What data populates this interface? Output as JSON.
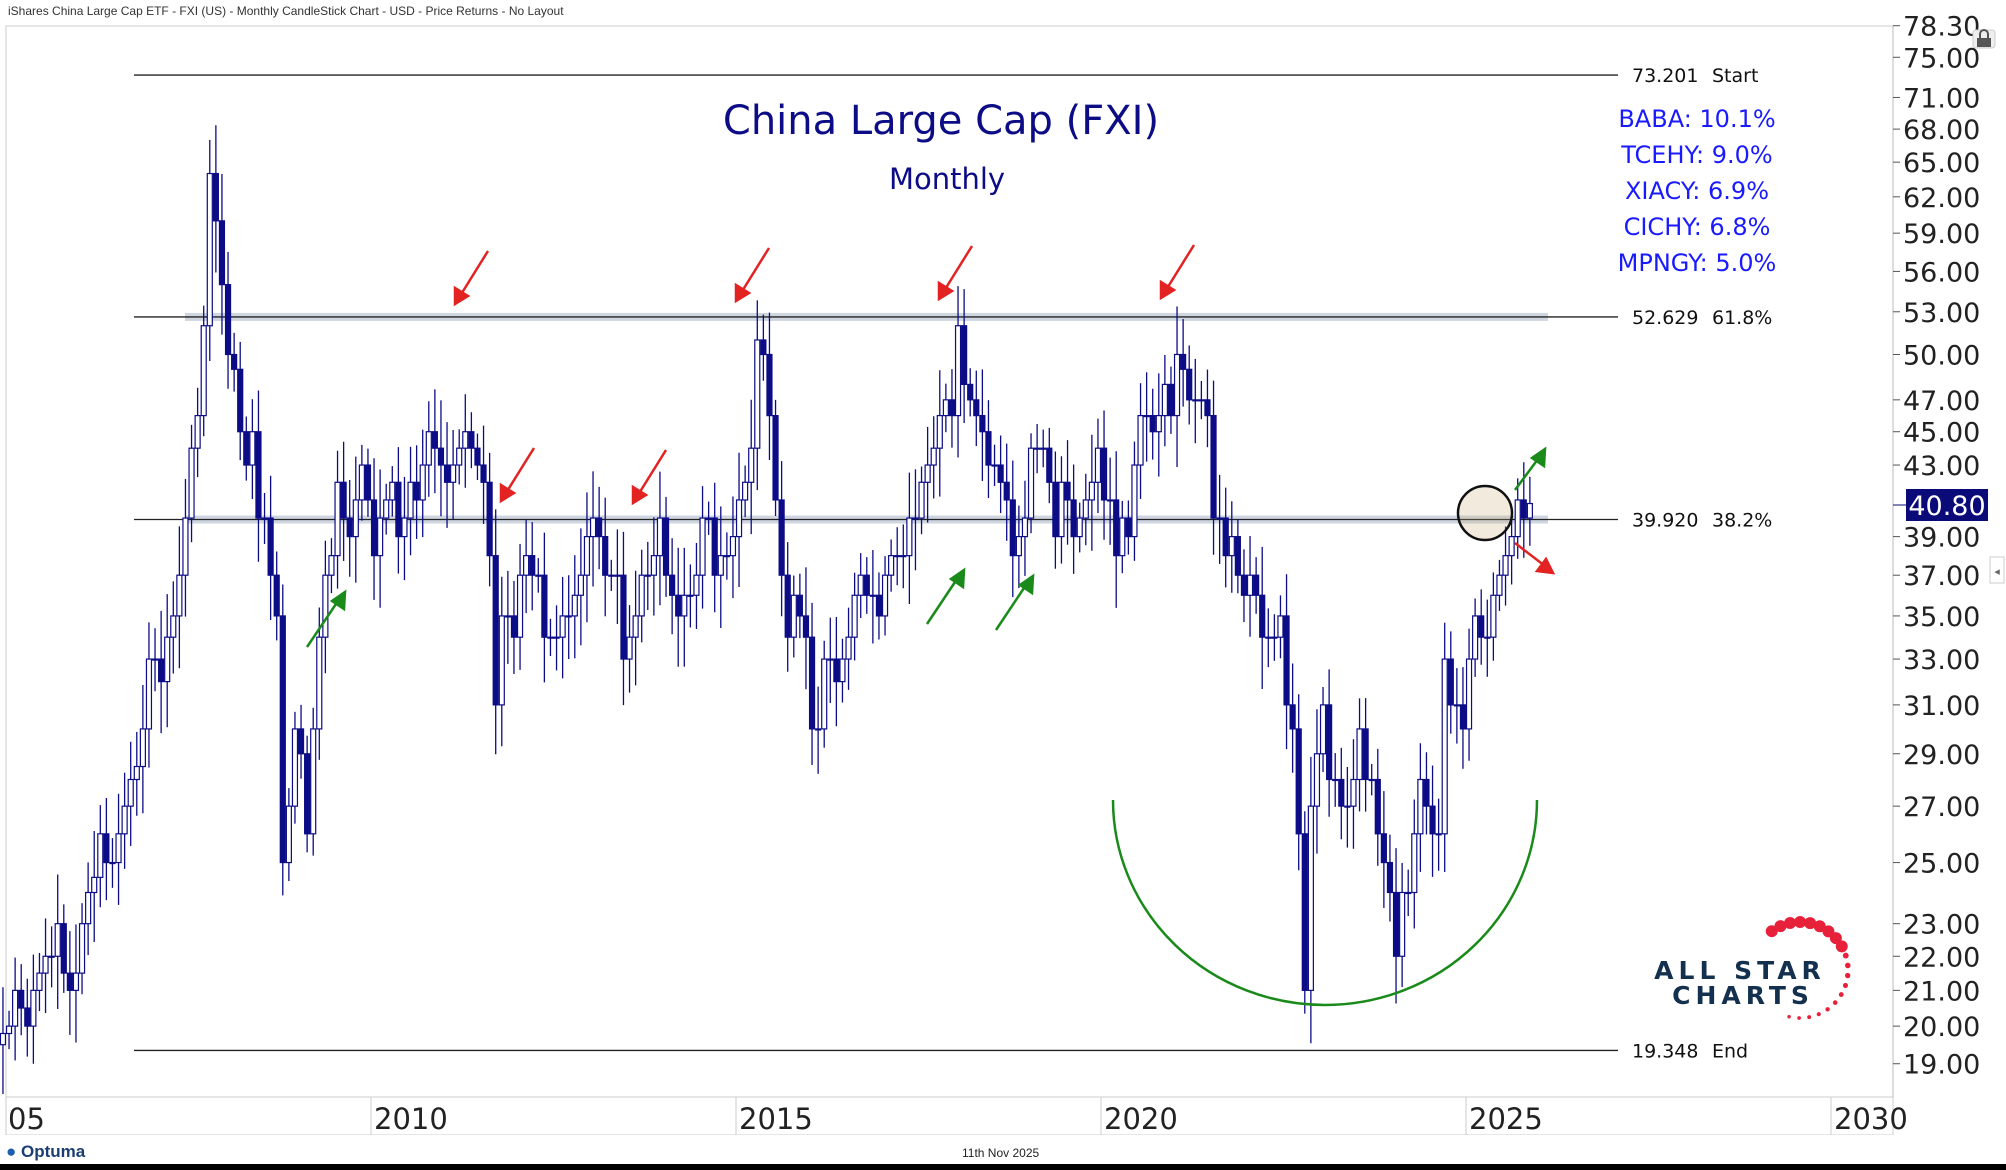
{
  "header": {
    "title": "iShares China Large Cap ETF - FXI (US) - Monthly CandleStick Chart - USD - Price Returns - No Layout"
  },
  "footer": {
    "brand": "Optuma",
    "date": "11th Nov 2025"
  },
  "watermark": {
    "text_line1": "ALL STAR",
    "text_line2": "CHARTS"
  },
  "colors": {
    "candle": "#0c0c86",
    "accent_text": "#1a1aff",
    "title": "#0c0c86",
    "up_arrow": "#1a8a1a",
    "down_arrow": "#e32222",
    "arc": "#1a8a1a",
    "price_badge": "#0a0a78"
  },
  "chart_data": {
    "type": "candlestick",
    "title": "China Large Cap (FXI)",
    "subtitle": "Monthly",
    "y_scale": "log",
    "ylim": [
      18,
      78.3
    ],
    "y_ticks": [
      "78.30",
      "75.00",
      "71.00",
      "68.00",
      "65.00",
      "62.00",
      "59.00",
      "56.00",
      "53.00",
      "50.00",
      "47.00",
      "45.00",
      "43.00",
      "39.00",
      "37.00",
      "35.00",
      "33.00",
      "31.00",
      "29.00",
      "27.00",
      "25.00",
      "23.00",
      "22.00",
      "21.00",
      "20.00",
      "19.00"
    ],
    "x_ticks": [
      "05",
      "2010",
      "2015",
      "2020",
      "2025",
      "2030"
    ],
    "last_price": "40.80",
    "start": "2004-11",
    "monthly_close": [
      19.5,
      19.8,
      20,
      21,
      20.5,
      20,
      21,
      21.5,
      22,
      22,
      23,
      21.5,
      21,
      21.5,
      23,
      24,
      24.5,
      26,
      25,
      25,
      26,
      27,
      28,
      28.5,
      30,
      33,
      33,
      32,
      34,
      35,
      37,
      40,
      44,
      46,
      52,
      64,
      60,
      55,
      50,
      49,
      45,
      43,
      45,
      40,
      40,
      37,
      35,
      25,
      27,
      30,
      29,
      26,
      30,
      34,
      37,
      38,
      42,
      40,
      39,
      41,
      43,
      41,
      38,
      40,
      41,
      42,
      39,
      40,
      42,
      41,
      43,
      45,
      44,
      43,
      42,
      43,
      44,
      45,
      44,
      43,
      42,
      38,
      31,
      35,
      35,
      34,
      37,
      38,
      37,
      37,
      34,
      34,
      34,
      35,
      35,
      36,
      37,
      39,
      40,
      39,
      37,
      37,
      37,
      33,
      34,
      35,
      37,
      37,
      38,
      40,
      37,
      36,
      35,
      36,
      36,
      37,
      40,
      40,
      37,
      38,
      38,
      39,
      41,
      42,
      44,
      51,
      50,
      46,
      41,
      37,
      34,
      36,
      35,
      34,
      30,
      30,
      33,
      33,
      32,
      33,
      34,
      36,
      37,
      36,
      36,
      35,
      37,
      38,
      38,
      38,
      40,
      40,
      42,
      43,
      44,
      46,
      47,
      46,
      52,
      48,
      47,
      46,
      45,
      43,
      43,
      42,
      41,
      38,
      39,
      40,
      44,
      44,
      44,
      42,
      39,
      42,
      41,
      39,
      40,
      41,
      42,
      44,
      41,
      41,
      38,
      40,
      39,
      43,
      46,
      46,
      45,
      46,
      48,
      46,
      50,
      49,
      47,
      47,
      47,
      46,
      40,
      40,
      38,
      39,
      37,
      36,
      37,
      36,
      34,
      34,
      34,
      35,
      31,
      30,
      26,
      21,
      27,
      29,
      31,
      28,
      28,
      27,
      27,
      28,
      30,
      28,
      28,
      26,
      25,
      24,
      22,
      24,
      24,
      26,
      28,
      27,
      26,
      26,
      33,
      31,
      31,
      30,
      33,
      35,
      34,
      34,
      36,
      37,
      38,
      39,
      41,
      40,
      40.8
    ],
    "levels": [
      {
        "value": "73.201",
        "label": "Start",
        "price": 73.201
      },
      {
        "value": "52.629",
        "label": "61.8%",
        "price": 52.629
      },
      {
        "value": "39.920",
        "label": "38.2%",
        "price": 39.92
      },
      {
        "value": "19.348",
        "label": "End",
        "price": 19.348
      }
    ],
    "holdings": [
      "BABA: 10.1%",
      "TCEHY: 9.0%",
      "XIACY: 6.9%",
      "CICHY: 6.8%",
      "MPNGY: 5.0%"
    ]
  }
}
